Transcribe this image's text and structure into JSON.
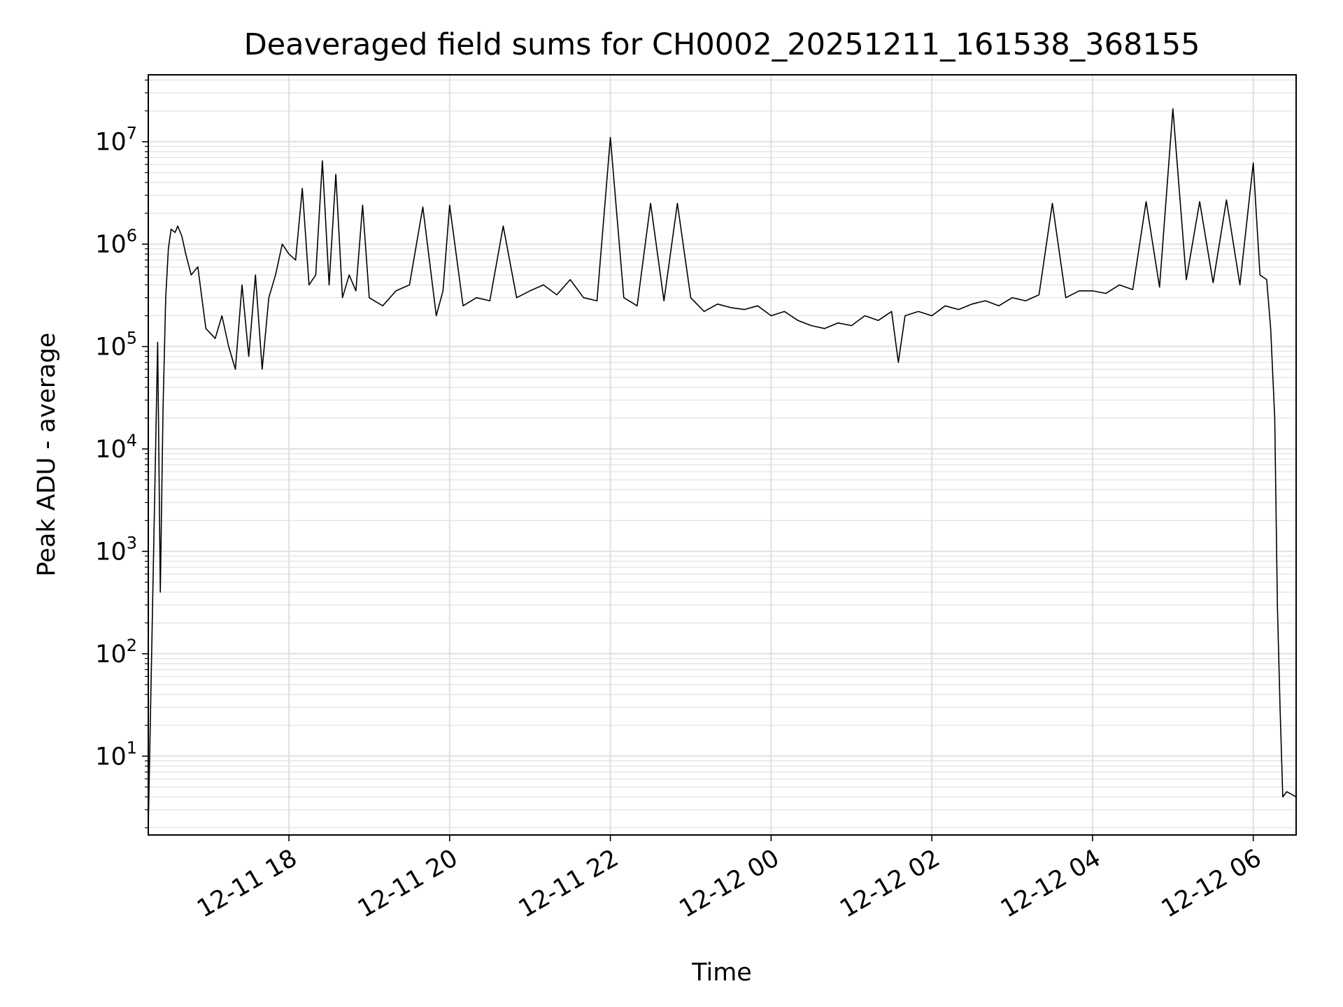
{
  "chart_data": {
    "type": "line",
    "title": "Deaveraged field sums for CH0002_20251211_161538_368155",
    "xlabel": "Time",
    "ylabel": "Peak ADU - average",
    "yscale": "log",
    "ylim": [
      1.7,
      45000000
    ],
    "xlim": [
      "2025-12-11 16:15",
      "2025-12-12 06:32"
    ],
    "grid": true,
    "x_tick_labels": [
      "12-11 18",
      "12-11 20",
      "12-11 22",
      "12-12 00",
      "12-12 02",
      "12-12 04",
      "12-12 06"
    ],
    "x_ticks": [
      "2025-12-11 18:00",
      "2025-12-11 20:00",
      "2025-12-11 22:00",
      "2025-12-12 00:00",
      "2025-12-12 02:00",
      "2025-12-12 04:00",
      "2025-12-12 06:00"
    ],
    "y_tick_labels": [
      {
        "base": "10",
        "exp": "1"
      },
      {
        "base": "10",
        "exp": "2"
      },
      {
        "base": "10",
        "exp": "3"
      },
      {
        "base": "10",
        "exp": "4"
      },
      {
        "base": "10",
        "exp": "5"
      },
      {
        "base": "10",
        "exp": "6"
      },
      {
        "base": "10",
        "exp": "7"
      }
    ],
    "y_ticks": [
      10,
      100,
      1000,
      10000,
      100000,
      1000000,
      10000000
    ],
    "series": [
      {
        "color": "#000000",
        "x": [
          "2025-12-11 16:15",
          "2025-12-11 16:22",
          "2025-12-11 16:24",
          "2025-12-11 16:26",
          "2025-12-11 16:28",
          "2025-12-11 16:30",
          "2025-12-11 16:32",
          "2025-12-11 16:35",
          "2025-12-11 16:37",
          "2025-12-11 16:40",
          "2025-12-11 16:43",
          "2025-12-11 16:47",
          "2025-12-11 16:52",
          "2025-12-11 16:58",
          "2025-12-11 17:05",
          "2025-12-11 17:10",
          "2025-12-11 17:15",
          "2025-12-11 17:20",
          "2025-12-11 17:25",
          "2025-12-11 17:30",
          "2025-12-11 17:35",
          "2025-12-11 17:40",
          "2025-12-11 17:45",
          "2025-12-11 17:50",
          "2025-12-11 17:55",
          "2025-12-11 18:00",
          "2025-12-11 18:05",
          "2025-12-11 18:10",
          "2025-12-11 18:15",
          "2025-12-11 18:20",
          "2025-12-11 18:25",
          "2025-12-11 18:30",
          "2025-12-11 18:35",
          "2025-12-11 18:40",
          "2025-12-11 18:45",
          "2025-12-11 18:50",
          "2025-12-11 18:55",
          "2025-12-11 19:00",
          "2025-12-11 19:10",
          "2025-12-11 19:20",
          "2025-12-11 19:30",
          "2025-12-11 19:40",
          "2025-12-11 19:50",
          "2025-12-11 19:55",
          "2025-12-11 20:00",
          "2025-12-11 20:10",
          "2025-12-11 20:20",
          "2025-12-11 20:30",
          "2025-12-11 20:40",
          "2025-12-11 20:50",
          "2025-12-11 21:00",
          "2025-12-11 21:10",
          "2025-12-11 21:20",
          "2025-12-11 21:30",
          "2025-12-11 21:40",
          "2025-12-11 21:50",
          "2025-12-11 22:00",
          "2025-12-11 22:10",
          "2025-12-11 22:20",
          "2025-12-11 22:30",
          "2025-12-11 22:40",
          "2025-12-11 22:50",
          "2025-12-11 23:00",
          "2025-12-11 23:10",
          "2025-12-11 23:20",
          "2025-12-11 23:30",
          "2025-12-11 23:40",
          "2025-12-11 23:50",
          "2025-12-12 00:00",
          "2025-12-12 00:10",
          "2025-12-12 00:20",
          "2025-12-12 00:30",
          "2025-12-12 00:40",
          "2025-12-12 00:50",
          "2025-12-12 01:00",
          "2025-12-12 01:10",
          "2025-12-12 01:20",
          "2025-12-12 01:30",
          "2025-12-12 01:35",
          "2025-12-12 01:40",
          "2025-12-12 01:50",
          "2025-12-12 02:00",
          "2025-12-12 02:10",
          "2025-12-12 02:20",
          "2025-12-12 02:30",
          "2025-12-12 02:40",
          "2025-12-12 02:50",
          "2025-12-12 03:00",
          "2025-12-12 03:10",
          "2025-12-12 03:20",
          "2025-12-12 03:30",
          "2025-12-12 03:40",
          "2025-12-12 03:50",
          "2025-12-12 04:00",
          "2025-12-12 04:10",
          "2025-12-12 04:20",
          "2025-12-12 04:30",
          "2025-12-12 04:40",
          "2025-12-12 04:50",
          "2025-12-12 05:00",
          "2025-12-12 05:10",
          "2025-12-12 05:20",
          "2025-12-12 05:30",
          "2025-12-12 05:40",
          "2025-12-12 05:50",
          "2025-12-12 06:00",
          "2025-12-12 06:05",
          "2025-12-12 06:10",
          "2025-12-12 06:13",
          "2025-12-12 06:16",
          "2025-12-12 06:18",
          "2025-12-12 06:20",
          "2025-12-12 06:22",
          "2025-12-12 06:25",
          "2025-12-12 06:32"
        ],
        "y": [
          2,
          110000,
          400,
          25000,
          300000,
          900000,
          1400000,
          1300000,
          1500000,
          1200000,
          800000,
          500000,
          600000,
          150000,
          120000,
          200000,
          100000,
          60000,
          400000,
          80000,
          500000,
          60000,
          300000,
          500000,
          1000000,
          800000,
          700000,
          3500000,
          400000,
          500000,
          6500000,
          400000,
          4800000,
          300000,
          500000,
          350000,
          2400000,
          300000,
          250000,
          350000,
          400000,
          2300000,
          200000,
          350000,
          2400000,
          250000,
          300000,
          280000,
          1500000,
          300000,
          350000,
          400000,
          320000,
          450000,
          300000,
          280000,
          11000000,
          300000,
          250000,
          2500000,
          280000,
          2500000,
          300000,
          220000,
          260000,
          240000,
          230000,
          250000,
          200000,
          220000,
          180000,
          160000,
          150000,
          170000,
          160000,
          200000,
          180000,
          220000,
          70000,
          200000,
          220000,
          200000,
          250000,
          230000,
          260000,
          280000,
          250000,
          300000,
          280000,
          320000,
          2500000,
          300000,
          350000,
          350000,
          330000,
          400000,
          360000,
          2600000,
          380000,
          21000000,
          450000,
          2600000,
          420000,
          2700000,
          400000,
          6200000,
          500000,
          450000,
          150000,
          20000,
          300,
          30,
          4,
          4.5,
          4
        ]
      }
    ]
  }
}
